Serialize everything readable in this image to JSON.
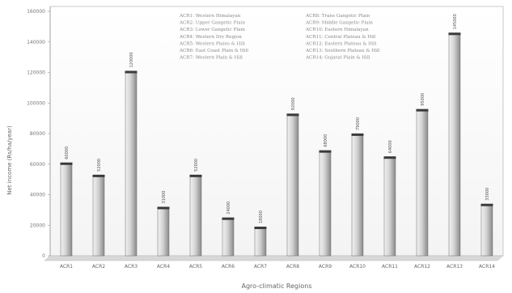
{
  "chart_data": {
    "type": "bar",
    "xlabel": "Agro-climatic Regions",
    "ylabel": "Net income (Rs/ha/year)",
    "ylim": [
      0,
      160000
    ],
    "yticks": [
      "0",
      "20000",
      "40000",
      "60000",
      "80000",
      "100000",
      "120000",
      "140000",
      "160000"
    ],
    "categories": [
      "ACR1",
      "ACR2",
      "ACR3",
      "ACR4",
      "ACR5",
      "ACR6",
      "ACR7",
      "ACR8",
      "ACR9",
      "ACR10",
      "ACR11",
      "ACR12",
      "ACR13",
      "ACR14"
    ],
    "values": [
      60000,
      52000,
      120000,
      31000,
      52000,
      24000,
      18000,
      92000,
      68000,
      79000,
      64000,
      95000,
      145000,
      33000
    ],
    "legend": [
      "ACR1: Western Himalayan",
      "ACR2: Upper Gangetic Plain",
      "ACR3: Lower Gangetic Plain",
      "ACR4: Western Dry Region",
      "ACR5: Western Plains & Hill",
      "ACR6: East Coast Plain & Hill",
      "ACR7: Western Plain & Hill",
      "ACR8: Trans Gangetic Plain",
      "ACR9: Middle Gangetic Plain",
      "ACR10: Eastern Himalayan",
      "ACR11: Central Plateau & Hill",
      "ACR12: Eastern Plateau & Hill",
      "ACR13: Southern Plateau & Hill",
      "ACR14: Gujarat Plain & Hill"
    ],
    "grid": false,
    "legend_position": "top-center",
    "colors": {
      "bar_light": "#e8e8e8",
      "bar_dark": "#8a8a8a",
      "bar_cap": "#3a3a3a",
      "floor": "#cfcfcf"
    }
  }
}
